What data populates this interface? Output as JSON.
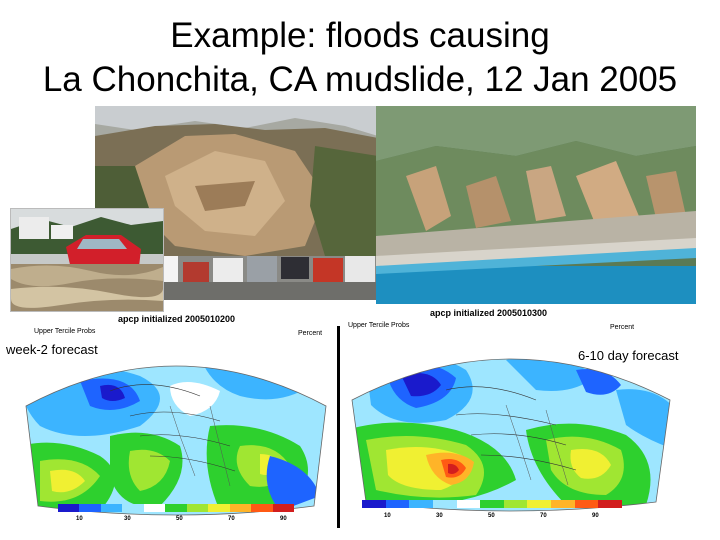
{
  "title": {
    "line1": "Example: floods causing",
    "line2": "La Chonchita, CA mudslide, 12 Jan 2005"
  },
  "photos": [
    {
      "subject": "mudslide-hillside-with-parked-cars"
    },
    {
      "subject": "flooded-street-with-red-car"
    },
    {
      "subject": "aerial-coastline-with-landslide"
    }
  ],
  "maps": {
    "week2": {
      "header": "apcp initialized 2005010200",
      "subheader": "Upper Tercile Probs",
      "percent_label": "Percent",
      "forecast_label": "week-2 forecast",
      "colorbar_ticks": [
        "10",
        "30",
        "50",
        "70",
        "90"
      ]
    },
    "six_ten": {
      "header": "apcp initialized 2005010300",
      "subheader": "Upper Tercile Probs",
      "percent_label": "Percent",
      "forecast_label": "6-10 day forecast",
      "colorbar_ticks": [
        "10",
        "30",
        "50",
        "70",
        "90"
      ]
    }
  },
  "colors": {
    "colorbar": [
      "#1a1acc",
      "#1e64ff",
      "#3cb4ff",
      "#9ee6ff",
      "#ffffff",
      "#2ed02e",
      "#a0e632",
      "#f0f032",
      "#ffb428",
      "#ff5a14",
      "#d21e1e"
    ]
  }
}
